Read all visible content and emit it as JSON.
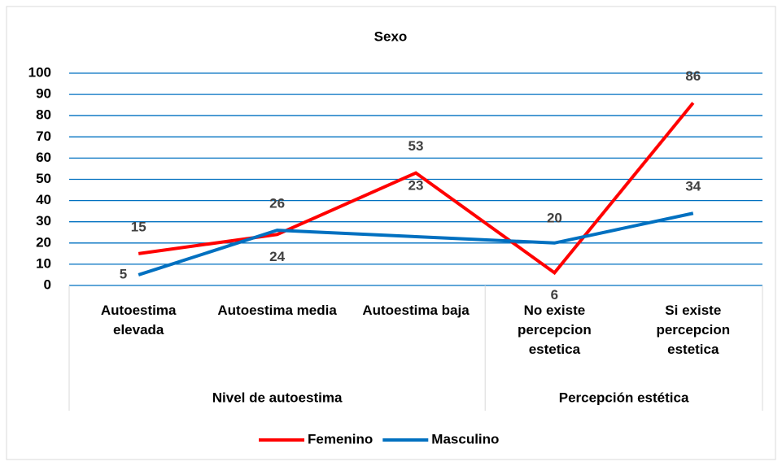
{
  "chart_data": {
    "type": "line",
    "title": "Sexo",
    "categories": [
      "Autoestima elevada",
      "Autoestima media",
      "Autoestima baja",
      "No existe percepcion estetica",
      "Si existe percepcion estetica"
    ],
    "groups": [
      {
        "label": "Nivel de autoestima",
        "size": 3
      },
      {
        "label": "Percepción estética",
        "size": 2
      }
    ],
    "series": [
      {
        "name": "Femenino",
        "color": "#ff0000",
        "values": [
          15,
          24,
          53,
          6,
          86
        ]
      },
      {
        "name": "Masculino",
        "color": "#0070c0",
        "values": [
          5,
          26,
          23,
          20,
          34
        ]
      }
    ],
    "ylim": [
      0,
      100
    ],
    "yticks": [
      0,
      10,
      20,
      30,
      40,
      50,
      60,
      70,
      80,
      90,
      100
    ],
    "grid": true,
    "legend": "bottom"
  }
}
